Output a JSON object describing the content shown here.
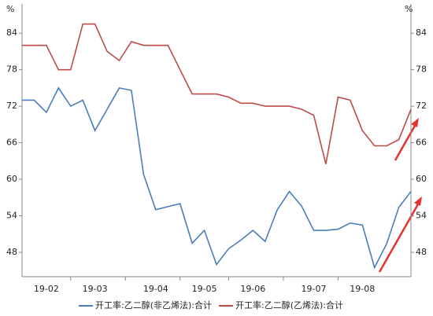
{
  "chart_data": {
    "type": "line",
    "y_unit": "%",
    "categories": [
      null,
      null,
      "19-02",
      null,
      null,
      null,
      "19-03",
      null,
      null,
      null,
      null,
      "19-04",
      null,
      null,
      null,
      "19-05",
      null,
      null,
      null,
      "19-06",
      null,
      null,
      null,
      null,
      "19-07",
      null,
      null,
      null,
      "19-08",
      null,
      null,
      null,
      null
    ],
    "series": [
      {
        "name": "开工率:乙二醇(非乙烯法):合计",
        "color": "#4a7ebb",
        "axis": "y",
        "values": [
          73,
          73,
          71,
          75,
          72,
          73,
          68,
          71.5,
          75,
          74.6,
          60.8,
          55,
          55.5,
          56,
          49.5,
          51.6,
          46,
          48.6,
          50,
          51.6,
          49.8,
          55,
          58,
          55.6,
          51.6,
          51.6,
          51.8,
          52.8,
          52.5,
          45.5,
          49.4,
          55.4,
          58
        ]
      },
      {
        "name": "开工率:乙二醇(乙烯法):合计",
        "color": "#be4b48",
        "axis": "y",
        "values": [
          82,
          82,
          82,
          78,
          78,
          85.5,
          85.5,
          81,
          79.5,
          82.6,
          82,
          82,
          82,
          78,
          74,
          74,
          74,
          73.5,
          72.5,
          72.5,
          72,
          72,
          72,
          71.5,
          70.5,
          62.5,
          73.5,
          73,
          68,
          65.5,
          65.5,
          66.5,
          71.5
        ]
      }
    ],
    "ylim": [
      44,
      88.8
    ],
    "yticks": [
      48,
      54,
      60,
      66,
      72,
      78,
      84
    ],
    "y2lim": [
      44,
      88.8
    ],
    "y2ticks": [
      48,
      54,
      60,
      66,
      72,
      78,
      84
    ],
    "grid": false
  }
}
